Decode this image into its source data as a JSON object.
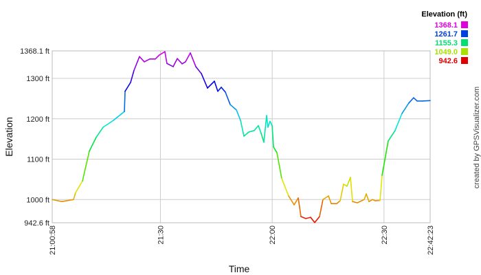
{
  "chart_data": {
    "type": "line",
    "title": "",
    "xlabel": "Time",
    "ylabel": "Elevation",
    "xlim": [
      "21:00:58",
      "22:42:23"
    ],
    "ylim": [
      942.6,
      1368.1
    ],
    "grid": true,
    "x_ticks": [
      "21:00:58",
      "21:30",
      "22:00",
      "22:30",
      "22:42:23"
    ],
    "y_ticks": [
      {
        "value": 942.6,
        "label": "942.6 ft"
      },
      {
        "value": 1000,
        "label": "1000 ft"
      },
      {
        "value": 1100,
        "label": "1100 ft"
      },
      {
        "value": 1200,
        "label": "1200 ft"
      },
      {
        "value": 1300,
        "label": "1300 ft"
      },
      {
        "value": 1368.1,
        "label": "1368.1 ft"
      }
    ],
    "color_by": "elevation",
    "legend": {
      "title": "Elevation (ft)",
      "placement": "top-right",
      "entries": [
        {
          "label": "1368.1",
          "color": "#e000e0"
        },
        {
          "label": "1261.7",
          "color": "#0040e0"
        },
        {
          "label": "1155.3",
          "color": "#00e070"
        },
        {
          "label": "1049.0",
          "color": "#a8e000"
        },
        {
          "label": "942.6",
          "color": "#e00000"
        }
      ]
    },
    "series": [
      {
        "points": [
          [
            "21:00:58",
            1000
          ],
          [
            "21:03:33",
            995
          ],
          [
            "21:05:24",
            998
          ],
          [
            "21:06:41",
            1000
          ],
          [
            "21:07:14",
            1017
          ],
          [
            "21:09:05",
            1046
          ],
          [
            "21:10:56",
            1120
          ],
          [
            "21:12:46",
            1154
          ],
          [
            "21:14:37",
            1179
          ],
          [
            "21:17:23",
            1196
          ],
          [
            "21:20:20",
            1218
          ],
          [
            "21:20:31",
            1268
          ],
          [
            "21:22:00",
            1290
          ],
          [
            "21:22:55",
            1320
          ],
          [
            "21:24:23",
            1354
          ],
          [
            "21:25:41",
            1341
          ],
          [
            "21:27:09",
            1348
          ],
          [
            "21:28:38",
            1348
          ],
          [
            "21:29:44",
            1358
          ],
          [
            "21:31:12",
            1366
          ],
          [
            "21:31:45",
            1337
          ],
          [
            "21:33:25",
            1329
          ],
          [
            "21:34:32",
            1349
          ],
          [
            "21:35:49",
            1336
          ],
          [
            "21:36:44",
            1341
          ],
          [
            "21:38:02",
            1363
          ],
          [
            "21:39:30",
            1329
          ],
          [
            "21:40:59",
            1312
          ],
          [
            "21:42:38",
            1276
          ],
          [
            "21:44:29",
            1293
          ],
          [
            "21:45:24",
            1268
          ],
          [
            "21:46:20",
            1278
          ],
          [
            "21:47:26",
            1266
          ],
          [
            "21:48:44",
            1235
          ],
          [
            "21:50:23",
            1222
          ],
          [
            "21:51:30",
            1196
          ],
          [
            "21:52:25",
            1157
          ],
          [
            "21:53:42",
            1167
          ],
          [
            "21:55:11",
            1171
          ],
          [
            "21:56:17",
            1183
          ],
          [
            "21:57:02",
            1164
          ],
          [
            "21:57:46",
            1142
          ],
          [
            "21:58:30",
            1208
          ],
          [
            "21:58:52",
            1179
          ],
          [
            "21:59:25",
            1194
          ],
          [
            "21:59:59",
            1183
          ],
          [
            "22:00:21",
            1130
          ],
          [
            "22:01:16",
            1116
          ],
          [
            "22:02:33",
            1052
          ],
          [
            "22:04:24",
            1009
          ],
          [
            "22:05:53",
            987
          ],
          [
            "22:06:59",
            1004
          ],
          [
            "22:07:43",
            958
          ],
          [
            "22:09:00",
            953
          ],
          [
            "22:10:18",
            956
          ],
          [
            "22:11:24",
            943
          ],
          [
            "22:12:42",
            958
          ],
          [
            "22:13:37",
            1000
          ],
          [
            "22:15:06",
            1009
          ],
          [
            "22:15:50",
            990
          ],
          [
            "22:17:19",
            990
          ],
          [
            "22:18:14",
            997
          ],
          [
            "22:19:09",
            1038
          ],
          [
            "22:20:04",
            1033
          ],
          [
            "22:21:00",
            1055
          ],
          [
            "22:21:33",
            995
          ],
          [
            "22:22:50",
            992
          ],
          [
            "22:24:41",
            1000
          ],
          [
            "22:25:14",
            1014
          ],
          [
            "22:25:59",
            995
          ],
          [
            "22:26:54",
            1000
          ],
          [
            "22:27:38",
            997
          ],
          [
            "22:28:56",
            998
          ],
          [
            "22:29:29",
            1060
          ],
          [
            "22:31:08",
            1145
          ],
          [
            "22:32:59",
            1171
          ],
          [
            "22:34:49",
            1213
          ],
          [
            "22:36:40",
            1239
          ],
          [
            "22:37:57",
            1252
          ],
          [
            "22:38:53",
            1244
          ],
          [
            "22:40:21",
            1244
          ],
          [
            "22:42:23",
            1245
          ]
        ]
      }
    ]
  },
  "credit": "created by GPSVisualizer.com"
}
